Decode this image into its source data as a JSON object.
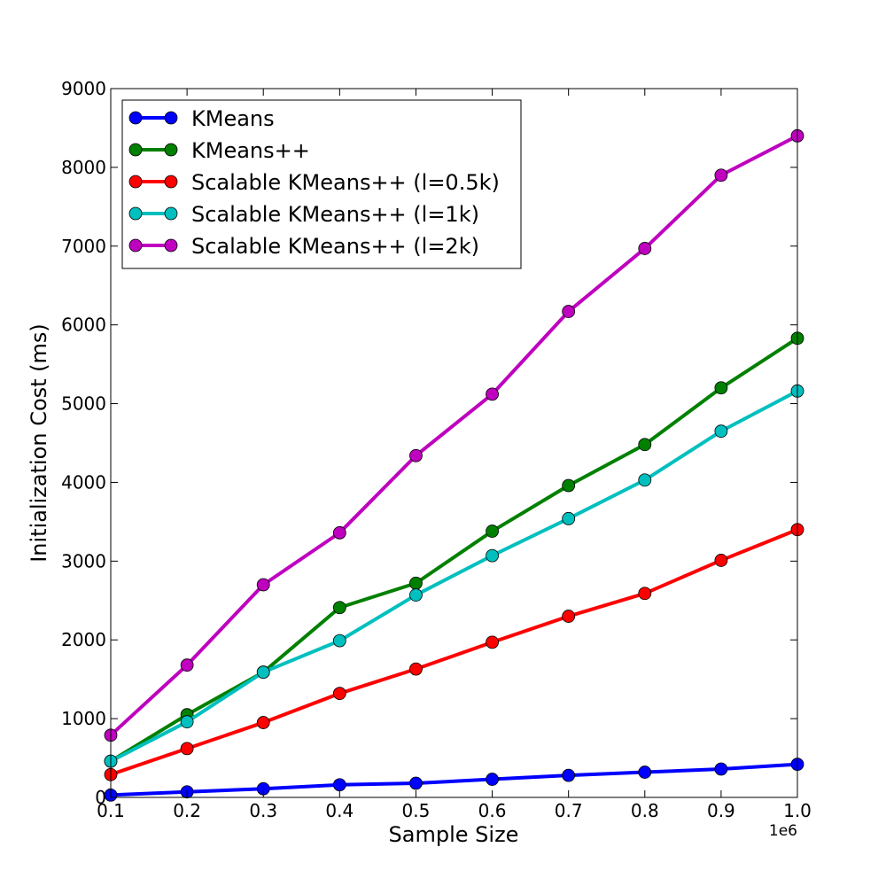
{
  "chart_data": {
    "type": "line",
    "title": "",
    "xlabel": "Sample Size",
    "ylabel": "Initialization Cost (ms)",
    "x_offset_label": "1e6",
    "xlim": [
      0.1,
      1.0
    ],
    "ylim": [
      0,
      9000
    ],
    "x_ticks": [
      "0.1",
      "0.2",
      "0.3",
      "0.4",
      "0.5",
      "0.6",
      "0.7",
      "0.8",
      "0.9",
      "1.0"
    ],
    "y_ticks": [
      "0",
      "1000",
      "2000",
      "3000",
      "4000",
      "5000",
      "6000",
      "7000",
      "8000",
      "9000"
    ],
    "grid": false,
    "legend_position": "top-left",
    "x": [
      0.1,
      0.2,
      0.3,
      0.4,
      0.5,
      0.6,
      0.7,
      0.8,
      0.9,
      1.0
    ],
    "series": [
      {
        "name": "KMeans",
        "color": "#0000ff",
        "values": [
          30,
          70,
          110,
          160,
          180,
          230,
          280,
          320,
          360,
          420
        ]
      },
      {
        "name": "KMeans++",
        "color": "#008000",
        "values": [
          460,
          1050,
          1590,
          2410,
          2720,
          3380,
          3960,
          4480,
          5200,
          5830
        ]
      },
      {
        "name": "Scalable KMeans++ (l=0.5k)",
        "color": "#ff0000",
        "values": [
          290,
          620,
          950,
          1320,
          1630,
          1970,
          2300,
          2590,
          3010,
          3400
        ]
      },
      {
        "name": "Scalable KMeans++ (l=1k)",
        "color": "#00bfbf",
        "values": [
          460,
          960,
          1590,
          1990,
          2570,
          3070,
          3540,
          4030,
          4650,
          5160
        ]
      },
      {
        "name": "Scalable KMeans++ (l=2k)",
        "color": "#bf00bf",
        "values": [
          790,
          1680,
          2700,
          3360,
          4340,
          5120,
          6170,
          6970,
          7900,
          8400
        ]
      }
    ]
  }
}
